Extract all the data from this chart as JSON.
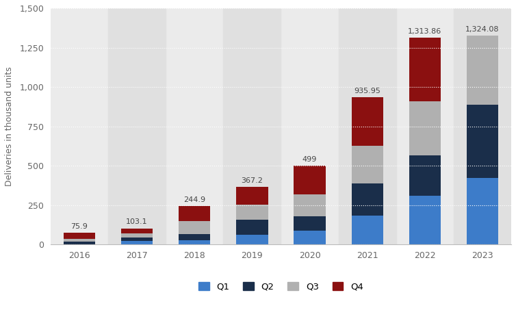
{
  "years": [
    "2016",
    "2017",
    "2018",
    "2019",
    "2020",
    "2021",
    "2022",
    "2023"
  ],
  "Q1": [
    2.0,
    25.0,
    28.0,
    63.0,
    88.5,
    184.8,
    310.0,
    422.9
  ],
  "Q2": [
    15.0,
    22.0,
    40.0,
    95.2,
    90.7,
    201.25,
    254.7,
    466.1
  ],
  "Q3": [
    18.0,
    26.0,
    83.0,
    97.0,
    139.3,
    241.3,
    343.8,
    435.1
  ],
  "Q4": [
    40.9,
    30.1,
    93.9,
    112.0,
    180.5,
    308.62,
    405.36,
    0.0
  ],
  "totals": [
    75.9,
    103.1,
    244.9,
    367.2,
    499.0,
    935.95,
    1313.86,
    1324.08
  ],
  "total_labels": [
    "75.9",
    "103.1",
    "244.9",
    "367.2",
    "499",
    "935.95",
    "1,313.86",
    "1,324.08"
  ],
  "colors": {
    "Q1": "#3d7cc9",
    "Q2": "#1a2e4a",
    "Q3": "#b0b0b0",
    "Q4": "#8b1010"
  },
  "ylabel": "Deliveries in thousand units",
  "ylim": [
    0,
    1500
  ],
  "yticks": [
    0,
    250,
    500,
    750,
    1000,
    1250,
    1500
  ],
  "ytick_labels": [
    "0",
    "250",
    "500",
    "750",
    "1,000",
    "1,250",
    "1,500"
  ],
  "background_color": "#ffffff",
  "plot_bg_color": "#ebebeb",
  "alt_col_bg_color": "#e0e0e0",
  "grid_color": "#ffffff",
  "bar_width": 0.55
}
